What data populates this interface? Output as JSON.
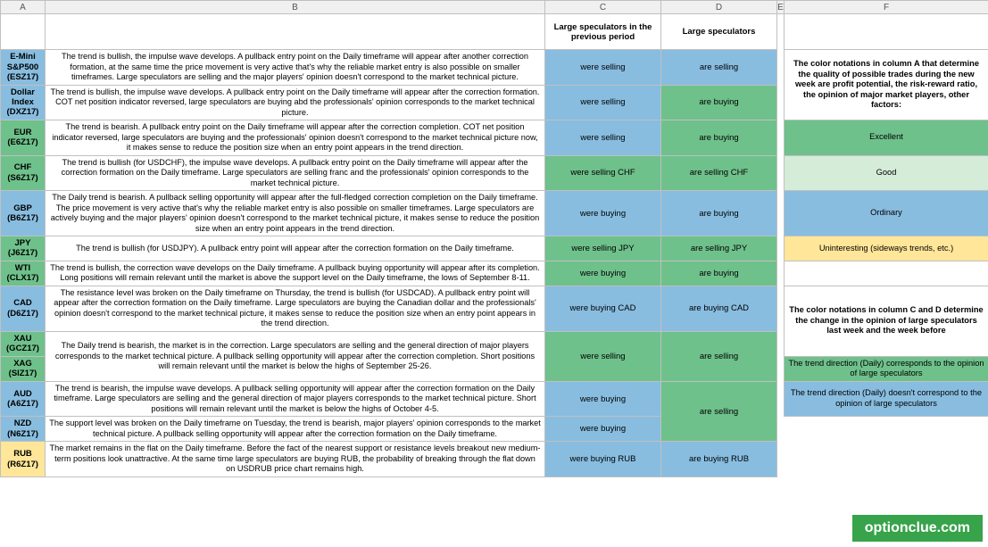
{
  "colors": {
    "blue": "#88bde0",
    "green": "#6fc18b",
    "lightgreen": "#d5ecd9",
    "yellow": "#ffe699",
    "bluegreen": "#8fcca7",
    "white": "#ffffff"
  },
  "column_headers": {
    "a": "A",
    "b": "B",
    "c": "C",
    "d": "D",
    "e": "E",
    "f": "F"
  },
  "headers": {
    "c": "Large speculators in the previous period",
    "d": "Large speculators"
  },
  "rows": [
    {
      "sym1": "E-Mini S&P500",
      "sym2": "(ESZ17)",
      "sym_bg": "blue",
      "desc": "The trend is bullish, the impulse wave develops. A pullback entry point on the Daily timeframe will appear after another correction formation, at the same time the price movement is very active that's why the reliable market entry is also possible on smaller timeframes. Large speculators are selling and the major players' opinion doesn't correspond to the market technical picture.",
      "c_txt": "were selling",
      "c_bg": "blue",
      "d_txt": "are selling",
      "d_bg": "blue"
    },
    {
      "sym1": "Dollar Index",
      "sym2": "(DXZ17)",
      "sym_bg": "blue",
      "desc": "The trend is bullish, the impulse wave develops. A pullback entry point on the Daily timeframe will appear after the correction formation. COT net position indicator reversed, large speculators are buying abd the professionals' opinion corresponds to the market technical picture.",
      "c_txt": "were selling",
      "c_bg": "blue",
      "d_txt": "are buying",
      "d_bg": "green"
    },
    {
      "sym1": "EUR",
      "sym2": "(E6Z17)",
      "sym_bg": "green",
      "desc": "The trend is bearish. A pullback entry point on the Daily timeframe will appear after the correction completion. COT net position indicator reversed, large speculators are buying and the professionals' opinion doesn't correspond to the market technical picture now,  it makes sense to reduce the position size when an entry point appears in the trend direction.",
      "c_txt": "were selling",
      "c_bg": "blue",
      "d_txt": "are buying",
      "d_bg": "green"
    },
    {
      "sym1": "CHF",
      "sym2": "(S6Z17)",
      "sym_bg": "green",
      "desc": "The trend is bullish (for USDCHF), the impulse wave develops. A pullback entry point on the Daily timeframe will appear after the correction formation on the Daily timeframe. Large speculators are selling franc and the professionals' opinion corresponds to the market technical picture.",
      "c_txt": "were selling CHF",
      "c_bg": "green",
      "d_txt": "are selling CHF",
      "d_bg": "green"
    },
    {
      "sym1": "GBP",
      "sym2": "(B6Z17)",
      "sym_bg": "blue",
      "desc": "The Daily trend is bearish. A pullback selling opportunity will appear after the full-fledged correction completion on the Daily timeframe. The price movement is very active that's why the reliable market entry is also possible on smaller timeframes. Large speculators are actively buying and the major players' opinion doesn't correspond to the market technical picture, it makes sense to reduce the position size when an entry point appears in the trend direction.",
      "c_txt": "were buying",
      "c_bg": "blue",
      "d_txt": "are buying",
      "d_bg": "blue"
    },
    {
      "sym1": "JPY",
      "sym2": "(J6Z17)",
      "sym_bg": "green",
      "desc": "The trend is bullish (for USDJPY). A pullback entry point will appear after the correction formation on the Daily timeframe.",
      "c_txt": "were selling JPY",
      "c_bg": "green",
      "d_txt": "are selling JPY",
      "d_bg": "green"
    },
    {
      "sym1": "WTI",
      "sym2": "(CLX17)",
      "sym_bg": "green",
      "desc": "The trend is bullish, the correction wave develops on the Daily timeframe. A pullback buying opportunity will appear after its completion. Long positions will remain relevant until the market is above the support level on the Daily timeframe, the lows of September 8-11.",
      "c_txt": "were buying",
      "c_bg": "green",
      "d_txt": "are buying",
      "d_bg": "green"
    },
    {
      "sym1": "CAD",
      "sym2": "(D6Z17)",
      "sym_bg": "blue",
      "desc": "The resistance level was broken on the Daily timeframe on Thursday, the trend is bullish (for USDCAD). A pullback entry point will appear after the correction formation on the Daily timeframe. Large speculators are buying the Canadian dollar and the professionals' opinion doesn't correspond to the market technical picture, it makes sense to reduce the position size when an entry point appears in the trend direction.",
      "c_txt": "were buying CAD",
      "c_bg": "blue",
      "d_txt": "are buying CAD",
      "d_bg": "blue"
    },
    {
      "sym1": "XAU",
      "sym2": "(GCZ17)",
      "sym_bg": "green",
      "desc": "The Daily trend is bearish, the market is in the correction. Large speculators are selling and the general direction of major players corresponds to the market technical picture. A pullback selling opportunity will appear after the correction completion. Short positions will remain relevant until the market is below the highs of September 25-26.",
      "c_txt": "were selling",
      "c_bg": "green",
      "d_txt": "are selling",
      "d_bg": "green",
      "merge_b": true
    },
    {
      "sym1": "XAG",
      "sym2": "(SIZ17)",
      "sym_bg": "green",
      "c_txt": "",
      "d_txt": "",
      "skip_b": true,
      "skip_c": true,
      "skip_d": true
    },
    {
      "sym1": "AUD",
      "sym2": "(A6Z17)",
      "sym_bg": "blue",
      "desc": "The trend is bearish, the impulse wave develops. A pullback selling opportunity will appear after the correction formation on the Daily timeframe. Large speculators are selling and the general direction of major players corresponds to the market technical picture. Short positions will remain relevant until the market is below the highs of October 4-5.",
      "c_txt": "were buying",
      "c_bg": "blue",
      "d_txt": "are selling",
      "d_bg": "green",
      "d_rowspan": 2
    },
    {
      "sym1": "NZD",
      "sym2": "(N6Z17)",
      "sym_bg": "blue",
      "desc": "The support level was broken on the Daily timeframe on Tuesday, the trend is bearish, major players' opinion corresponds to the market technical picture. A pullback selling opportunity will appear after the correction formation on the Daily timeframe.",
      "c_txt": "were buying",
      "c_bg": "blue",
      "skip_d": true
    },
    {
      "sym1": "RUB",
      "sym2": "(R6Z17)",
      "sym_bg": "yellow",
      "desc": "The market remains in the flat on the Daily timeframe. Before the fact of the nearest support or resistance levels breakout new medium-term positions look unattractive. At the same time large speculators are buying RUB, the probability of breaking through the flat down on USDRUB price chart remains high.",
      "c_txt": "were buying RUB",
      "c_bg": "blue",
      "d_txt": "are buying RUB",
      "d_bg": "blue"
    }
  ],
  "side": {
    "note1": "The color notations in column A that determine the quality of possible trades during the new week are profit potential, the risk-reward ratio, the opinion of major market players, other factors:",
    "excellent": "Excellent",
    "good": "Good",
    "ordinary": "Ordinary",
    "uninteresting": "Uninteresting (sideways trends, etc.)",
    "note2": "The color notations in column C and D determine the change in the opinion of large speculators last week and the week before",
    "legend_corr": "The trend direction (Daily) corresponds to the opinion of large speculators",
    "legend_notcorr": "The trend direction (Daily) doesn't correspond to the opinion of large speculators"
  },
  "watermark": "optionclue.com"
}
